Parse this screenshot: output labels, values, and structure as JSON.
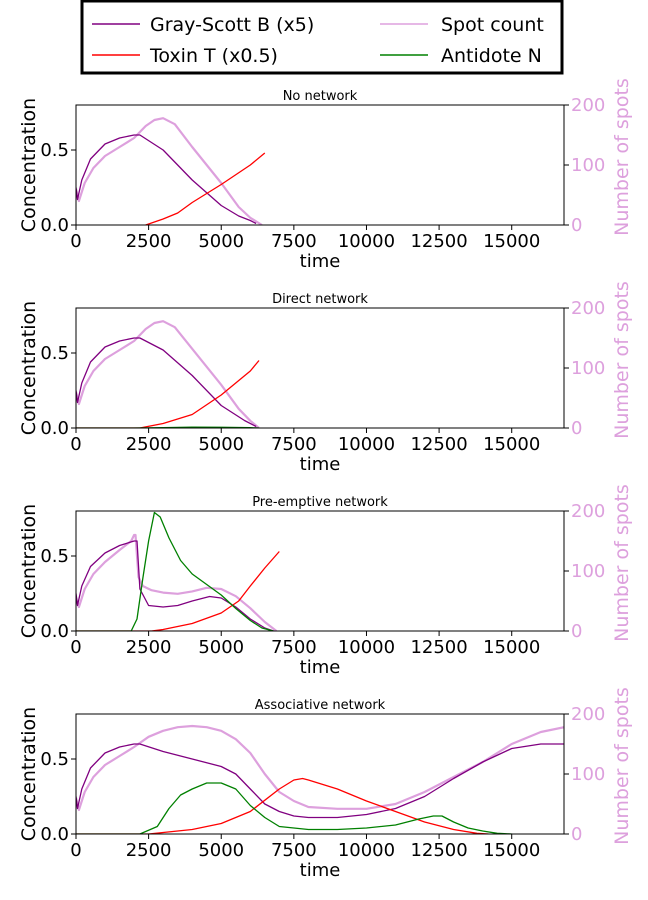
{
  "legend": {
    "entries": [
      {
        "label": "Gray-Scott B (x5)",
        "color": "#800080"
      },
      {
        "label": "Spot count",
        "color": "#dda0dd"
      },
      {
        "label": "Toxin T (x0.5)",
        "color": "#ff0000"
      },
      {
        "label": "Antidote N",
        "color": "#008000"
      }
    ]
  },
  "colors": {
    "gray_scott": "#800080",
    "spots": "#dda0dd",
    "toxin": "#ff0000",
    "antidote": "#008000"
  },
  "chart_data": [
    {
      "type": "line",
      "title": "No network",
      "xlabel": "time",
      "ylabel": "Concentration",
      "y2label": "Number of spots",
      "xlim": [
        0,
        16800
      ],
      "ylim": [
        0,
        0.8
      ],
      "y2lim": [
        0,
        200
      ],
      "xticks": [
        0,
        2500,
        5000,
        7500,
        10000,
        12500,
        15000
      ],
      "xtick_labels": [
        "0",
        "2500",
        "5000",
        "7500",
        "10000",
        "12500",
        "15000"
      ],
      "yticks": [
        0.0,
        0.5
      ],
      "ytick_labels": [
        "0.0",
        "0.5"
      ],
      "y2ticks": [
        0,
        100,
        200
      ],
      "y2tick_labels": [
        "0",
        "100",
        "200"
      ],
      "series": [
        {
          "name": "Gray-Scott B (x5)",
          "axis": "left",
          "color": "#800080",
          "x": [
            0,
            50,
            200,
            500,
            1000,
            1500,
            2000,
            2200,
            3000,
            4000,
            5000,
            5600,
            6000,
            6200
          ],
          "y": [
            0.25,
            0.17,
            0.3,
            0.44,
            0.54,
            0.58,
            0.6,
            0.6,
            0.5,
            0.3,
            0.13,
            0.06,
            0.03,
            0.01
          ]
        },
        {
          "name": "Toxin T (x0.5)",
          "axis": "left",
          "color": "#ff0000",
          "x": [
            2400,
            3000,
            3500,
            4000,
            5000,
            6000,
            6500
          ],
          "y": [
            0.0,
            0.04,
            0.08,
            0.15,
            0.27,
            0.4,
            0.48
          ]
        },
        {
          "name": "Spot count",
          "axis": "right",
          "color": "#dda0dd",
          "x": [
            0,
            100,
            300,
            600,
            1000,
            1500,
            2000,
            2400,
            2700,
            3000,
            3400,
            4000,
            5000,
            5600,
            6000,
            6400
          ],
          "y": [
            60,
            40,
            70,
            95,
            115,
            130,
            145,
            165,
            175,
            178,
            168,
            130,
            70,
            30,
            12,
            0
          ]
        }
      ]
    },
    {
      "type": "line",
      "title": "Direct network",
      "xlabel": "time",
      "ylabel": "Concentration",
      "y2label": "Number of spots",
      "xlim": [
        0,
        16800
      ],
      "ylim": [
        0,
        0.8
      ],
      "y2lim": [
        0,
        200
      ],
      "xticks": [
        0,
        2500,
        5000,
        7500,
        10000,
        12500,
        15000
      ],
      "xtick_labels": [
        "0",
        "2500",
        "5000",
        "7500",
        "10000",
        "12500",
        "15000"
      ],
      "yticks": [
        0.0,
        0.5
      ],
      "ytick_labels": [
        "0.0",
        "0.5"
      ],
      "y2ticks": [
        0,
        100,
        200
      ],
      "y2tick_labels": [
        "0",
        "100",
        "200"
      ],
      "series": [
        {
          "name": "Gray-Scott B (x5)",
          "axis": "left",
          "color": "#800080",
          "x": [
            0,
            50,
            200,
            500,
            1000,
            1500,
            2000,
            2200,
            3000,
            4000,
            5000,
            5800,
            6200
          ],
          "y": [
            0.25,
            0.17,
            0.3,
            0.44,
            0.54,
            0.58,
            0.6,
            0.6,
            0.52,
            0.35,
            0.15,
            0.05,
            0.01
          ]
        },
        {
          "name": "Toxin T (x0.5)",
          "axis": "left",
          "color": "#ff0000",
          "x": [
            0,
            2200,
            3000,
            4000,
            5000,
            6000,
            6300
          ],
          "y": [
            0.0,
            0.0,
            0.03,
            0.09,
            0.22,
            0.38,
            0.45
          ]
        },
        {
          "name": "Antidote N",
          "axis": "left",
          "color": "#008000",
          "x": [
            0,
            2000,
            3000,
            4000,
            5000,
            6000,
            6300
          ],
          "y": [
            0.0,
            0.0,
            0.003,
            0.006,
            0.005,
            0.002,
            0.0
          ]
        },
        {
          "name": "Spot count",
          "axis": "right",
          "color": "#dda0dd",
          "x": [
            0,
            100,
            300,
            600,
            1000,
            1500,
            2000,
            2400,
            2700,
            3000,
            3400,
            4000,
            5000,
            5600,
            6000,
            6300
          ],
          "y": [
            60,
            40,
            70,
            95,
            115,
            130,
            145,
            165,
            175,
            178,
            168,
            132,
            72,
            32,
            12,
            0
          ]
        }
      ]
    },
    {
      "type": "line",
      "title": "Pre-emptive network",
      "xlabel": "time",
      "ylabel": "Concentration",
      "y2label": "Number of spots",
      "xlim": [
        0,
        16800
      ],
      "ylim": [
        0,
        0.8
      ],
      "y2lim": [
        0,
        200
      ],
      "xticks": [
        0,
        2500,
        5000,
        7500,
        10000,
        12500,
        15000
      ],
      "xtick_labels": [
        "0",
        "2500",
        "5000",
        "7500",
        "10000",
        "12500",
        "15000"
      ],
      "yticks": [
        0.0,
        0.5
      ],
      "ytick_labels": [
        "0.0",
        "0.5"
      ],
      "y2ticks": [
        0,
        100,
        200
      ],
      "y2tick_labels": [
        "0",
        "100",
        "200"
      ],
      "series": [
        {
          "name": "Gray-Scott B (x5)",
          "axis": "left",
          "color": "#800080",
          "x": [
            0,
            50,
            200,
            500,
            1000,
            1500,
            2000,
            2100,
            2200,
            2500,
            3000,
            3500,
            4000,
            4600,
            5000,
            5500,
            6000,
            6500,
            6800
          ],
          "y": [
            0.25,
            0.17,
            0.3,
            0.43,
            0.52,
            0.57,
            0.6,
            0.6,
            0.28,
            0.17,
            0.16,
            0.17,
            0.2,
            0.23,
            0.22,
            0.16,
            0.08,
            0.02,
            0.0
          ]
        },
        {
          "name": "Toxin T (x0.5)",
          "axis": "left",
          "color": "#ff0000",
          "x": [
            0,
            2600,
            3000,
            4000,
            5000,
            5600,
            6000,
            6500,
            7000
          ],
          "y": [
            0.0,
            0.0,
            0.01,
            0.05,
            0.12,
            0.2,
            0.3,
            0.42,
            0.53
          ]
        },
        {
          "name": "Antidote N",
          "axis": "left",
          "color": "#008000",
          "x": [
            0,
            1900,
            2100,
            2300,
            2500,
            2700,
            2900,
            3200,
            3600,
            4000,
            4500,
            5000,
            5500,
            6000,
            6400,
            6800
          ],
          "y": [
            0.0,
            0.0,
            0.08,
            0.35,
            0.6,
            0.79,
            0.76,
            0.62,
            0.47,
            0.38,
            0.31,
            0.24,
            0.15,
            0.07,
            0.02,
            0.0
          ]
        },
        {
          "name": "Spot count",
          "axis": "right",
          "color": "#dda0dd",
          "x": [
            0,
            100,
            300,
            600,
            1000,
            1500,
            1900,
            2000,
            2050,
            2150,
            2300,
            2600,
            3000,
            3500,
            4000,
            4500,
            5000,
            5500,
            6000,
            6500,
            6900
          ],
          "y": [
            55,
            40,
            70,
            95,
            115,
            135,
            150,
            160,
            160,
            90,
            75,
            68,
            64,
            62,
            66,
            72,
            70,
            58,
            38,
            15,
            0
          ]
        }
      ]
    },
    {
      "type": "line",
      "title": "Associative network",
      "xlabel": "time",
      "ylabel": "Concentration",
      "y2label": "Number of spots",
      "xlim": [
        0,
        16800
      ],
      "ylim": [
        0,
        0.8
      ],
      "y2lim": [
        0,
        200
      ],
      "xticks": [
        0,
        2500,
        5000,
        7500,
        10000,
        12500,
        15000
      ],
      "xtick_labels": [
        "0",
        "2500",
        "5000",
        "7500",
        "10000",
        "12500",
        "15000"
      ],
      "yticks": [
        0.0,
        0.5
      ],
      "ytick_labels": [
        "0.0",
        "0.5"
      ],
      "y2ticks": [
        0,
        100,
        200
      ],
      "y2tick_labels": [
        "0",
        "100",
        "200"
      ],
      "series": [
        {
          "name": "Gray-Scott B (x5)",
          "axis": "left",
          "color": "#800080",
          "x": [
            0,
            50,
            200,
            500,
            1000,
            1500,
            2000,
            2200,
            3000,
            4000,
            5000,
            5500,
            6000,
            6500,
            7000,
            7500,
            8000,
            9000,
            10000,
            11000,
            12000,
            13000,
            14000,
            15000,
            16000,
            16800
          ],
          "y": [
            0.25,
            0.17,
            0.3,
            0.44,
            0.54,
            0.58,
            0.6,
            0.6,
            0.55,
            0.5,
            0.45,
            0.4,
            0.3,
            0.2,
            0.15,
            0.12,
            0.11,
            0.11,
            0.13,
            0.17,
            0.25,
            0.37,
            0.48,
            0.57,
            0.6,
            0.6
          ]
        },
        {
          "name": "Toxin T (x0.5)",
          "axis": "left",
          "color": "#ff0000",
          "x": [
            0,
            2500,
            3000,
            4000,
            5000,
            6000,
            7000,
            7500,
            7800,
            8000,
            9000,
            10000,
            11000,
            12000,
            13000,
            13800,
            14200
          ],
          "y": [
            0.0,
            0.0,
            0.01,
            0.03,
            0.07,
            0.15,
            0.3,
            0.36,
            0.37,
            0.36,
            0.3,
            0.22,
            0.15,
            0.08,
            0.03,
            0.005,
            0.0
          ]
        },
        {
          "name": "Antidote N",
          "axis": "left",
          "color": "#008000",
          "x": [
            0,
            2200,
            2800,
            3200,
            3600,
            4000,
            4500,
            5000,
            5500,
            6000,
            6500,
            7000,
            8000,
            9000,
            10000,
            11000,
            11800,
            12300,
            12600,
            13000,
            13500,
            14000,
            14500,
            15000
          ],
          "y": [
            0.0,
            0.0,
            0.05,
            0.17,
            0.26,
            0.3,
            0.34,
            0.34,
            0.3,
            0.19,
            0.11,
            0.05,
            0.03,
            0.03,
            0.04,
            0.06,
            0.1,
            0.12,
            0.12,
            0.08,
            0.04,
            0.02,
            0.005,
            0.0
          ]
        },
        {
          "name": "Spot count",
          "axis": "right",
          "color": "#dda0dd",
          "x": [
            0,
            100,
            300,
            600,
            1000,
            1500,
            2000,
            2500,
            3000,
            3500,
            4000,
            4500,
            5000,
            5500,
            6000,
            6500,
            7000,
            7500,
            8000,
            9000,
            10000,
            11000,
            12000,
            13000,
            14000,
            15000,
            16000,
            16800
          ],
          "y": [
            60,
            40,
            70,
            95,
            115,
            130,
            145,
            162,
            172,
            178,
            180,
            178,
            172,
            158,
            135,
            100,
            70,
            55,
            45,
            42,
            42,
            50,
            70,
            95,
            120,
            150,
            170,
            178
          ]
        }
      ]
    }
  ]
}
